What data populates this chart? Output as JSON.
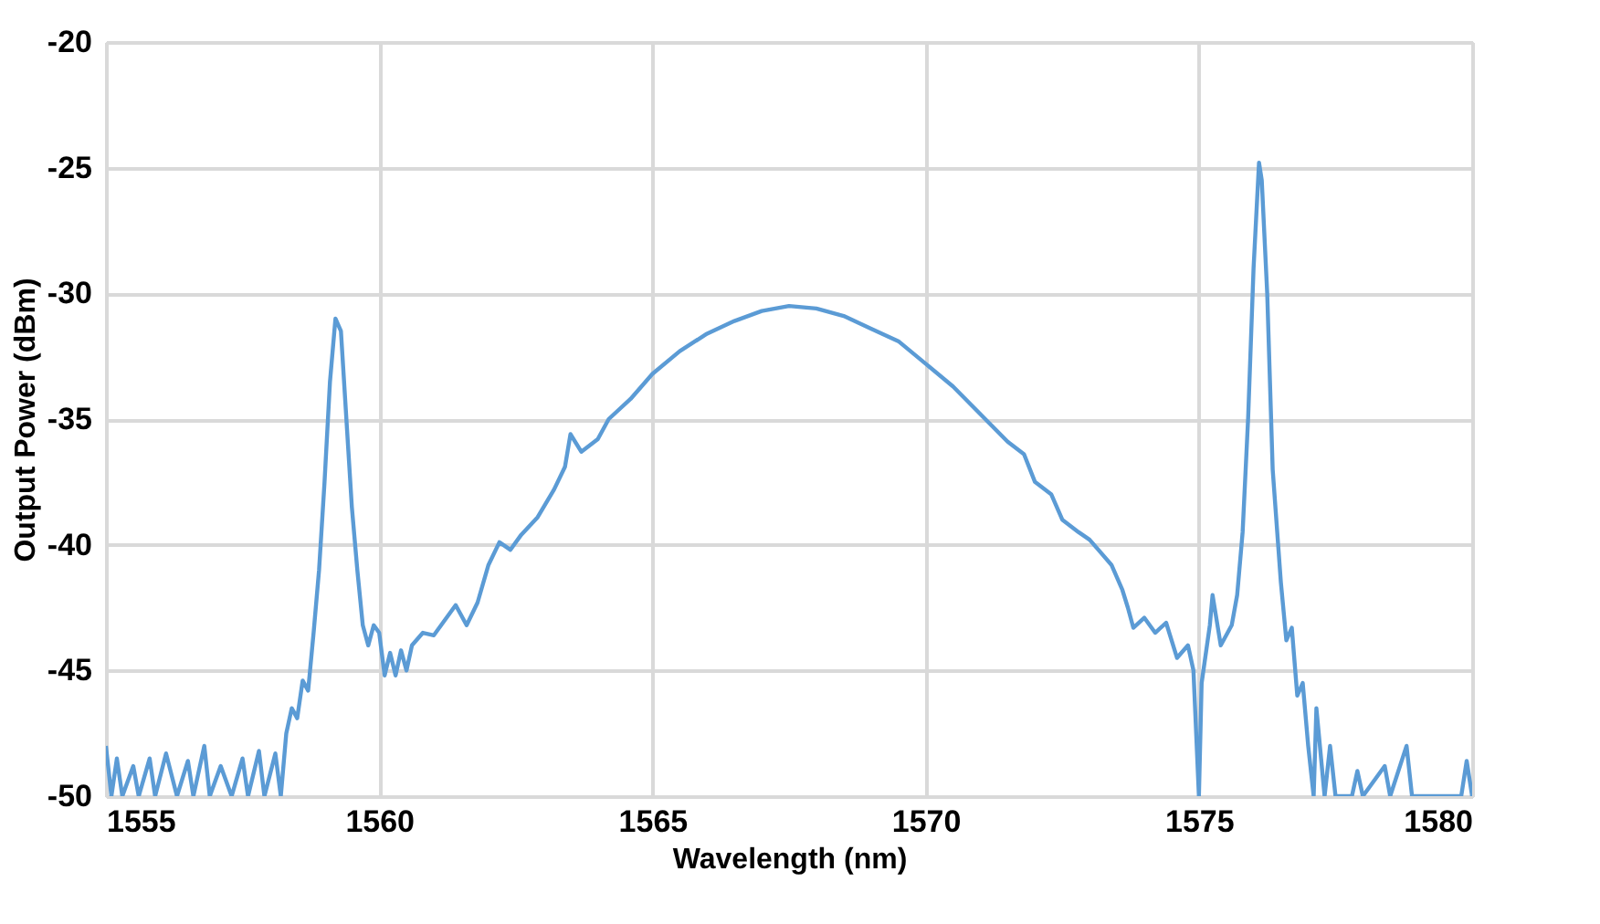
{
  "chart_data": {
    "type": "line",
    "xlabel": "Wavelength (nm)",
    "ylabel": "Output Power (dBm)",
    "xlim": [
      1555,
      1580
    ],
    "xticks": [
      1555,
      1560,
      1565,
      1570,
      1575,
      1580
    ],
    "ylim": [
      -50,
      -20
    ],
    "yticks": [
      -50,
      -45,
      -40,
      -35,
      -30,
      -25,
      -20
    ],
    "grid": true,
    "marker": "none",
    "line_style": "solid",
    "series": [
      {
        "color": "#5b9bd5",
        "x": [
          1555.0,
          1555.1,
          1555.2,
          1555.3,
          1555.5,
          1555.6,
          1555.8,
          1555.9,
          1556.1,
          1556.3,
          1556.5,
          1556.6,
          1556.8,
          1556.9,
          1557.1,
          1557.3,
          1557.5,
          1557.6,
          1557.8,
          1557.9,
          1558.1,
          1558.2,
          1558.3,
          1558.4,
          1558.5,
          1558.6,
          1558.7,
          1558.8,
          1558.9,
          1559.0,
          1559.1,
          1559.2,
          1559.3,
          1559.4,
          1559.5,
          1559.6,
          1559.7,
          1559.8,
          1559.9,
          1560.0,
          1560.1,
          1560.2,
          1560.3,
          1560.4,
          1560.5,
          1560.6,
          1560.8,
          1561.0,
          1561.2,
          1561.4,
          1561.6,
          1561.8,
          1562.0,
          1562.2,
          1562.4,
          1562.6,
          1562.9,
          1563.2,
          1563.4,
          1563.5,
          1563.7,
          1564.0,
          1564.2,
          1564.6,
          1565.0,
          1565.5,
          1566.0,
          1566.5,
          1567.0,
          1567.5,
          1568.0,
          1568.5,
          1569.0,
          1569.5,
          1570.0,
          1570.5,
          1571.0,
          1571.5,
          1571.8,
          1572.0,
          1572.3,
          1572.5,
          1572.8,
          1573.0,
          1573.2,
          1573.4,
          1573.6,
          1573.7,
          1573.8,
          1574.0,
          1574.2,
          1574.4,
          1574.6,
          1574.8,
          1574.9,
          1575.0,
          1575.05,
          1575.2,
          1575.25,
          1575.4,
          1575.6,
          1575.7,
          1575.8,
          1575.9,
          1576.0,
          1576.1,
          1576.15,
          1576.25,
          1576.35,
          1576.5,
          1576.6,
          1576.7,
          1576.8,
          1576.9,
          1577.0,
          1577.1,
          1577.15,
          1577.3,
          1577.4,
          1577.5,
          1577.8,
          1577.9,
          1578.0,
          1578.4,
          1578.5,
          1578.8,
          1578.9,
          1579.2,
          1579.8,
          1579.9,
          1580.0
        ],
        "values": [
          -48.0,
          -50,
          -48.5,
          -50,
          -48.8,
          -50,
          -48.5,
          -50,
          -48.3,
          -50,
          -48.6,
          -50,
          -48.0,
          -50,
          -48.8,
          -50,
          -48.5,
          -50,
          -48.2,
          -50,
          -48.3,
          -50,
          -47.5,
          -46.5,
          -46.9,
          -45.4,
          -45.8,
          -43.5,
          -41.0,
          -37.5,
          -33.5,
          -31.0,
          -31.5,
          -35,
          -38.5,
          -41,
          -43.2,
          -44.0,
          -43.2,
          -43.5,
          -45.2,
          -44.3,
          -45.2,
          -44.2,
          -45.0,
          -44.0,
          -43.5,
          -43.6,
          -43.0,
          -42.4,
          -43.2,
          -42.3,
          -40.8,
          -39.9,
          -40.2,
          -39.6,
          -38.9,
          -37.8,
          -36.9,
          -35.6,
          -36.3,
          -35.8,
          -35.0,
          -34.2,
          -33.2,
          -32.3,
          -31.6,
          -31.1,
          -30.7,
          -30.5,
          -30.6,
          -30.9,
          -31.4,
          -31.9,
          -32.8,
          -33.7,
          -34.8,
          -35.9,
          -36.4,
          -37.5,
          -38.0,
          -39.0,
          -39.5,
          -39.8,
          -40.3,
          -40.8,
          -41.8,
          -42.5,
          -43.3,
          -42.9,
          -43.5,
          -43.1,
          -44.5,
          -44.0,
          -45.0,
          -50.0,
          -45.5,
          -43.2,
          -42.0,
          -44.0,
          -43.2,
          -42.0,
          -39.5,
          -35,
          -29,
          -24.8,
          -25.5,
          -30,
          -37,
          -41.5,
          -43.8,
          -43.3,
          -46,
          -45.5,
          -48,
          -50,
          -46.5,
          -50,
          -48,
          -50,
          -50,
          -49,
          -50,
          -48.8,
          -50,
          -48.0,
          -50,
          -50,
          -50,
          -48.6,
          -50
        ]
      }
    ]
  }
}
